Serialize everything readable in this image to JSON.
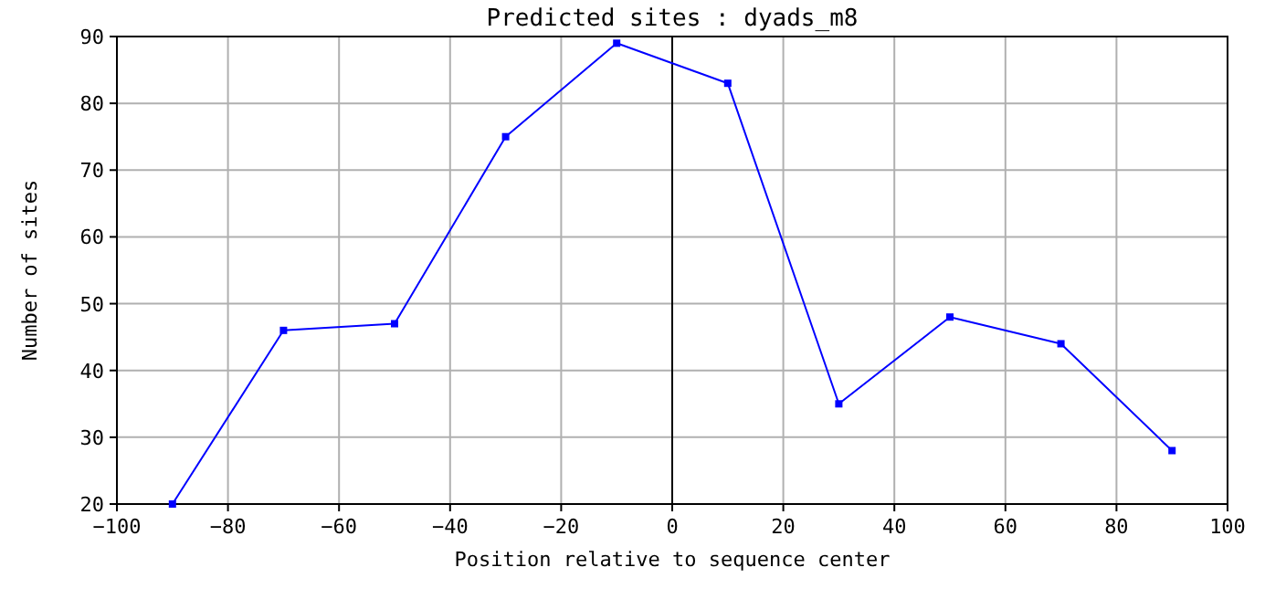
{
  "chart_data": {
    "type": "line",
    "title": "Predicted sites : dyads_m8",
    "xlabel": "Position relative to sequence center",
    "ylabel": "Number of sites",
    "x": [
      -90,
      -70,
      -50,
      -30,
      -10,
      10,
      30,
      50,
      70,
      90
    ],
    "series": [
      {
        "color": "#0000ff",
        "values": [
          20,
          46,
          47,
          75,
          89,
          83,
          35,
          48,
          44,
          28
        ]
      }
    ],
    "xlim": [
      -100,
      100
    ],
    "xticks": [
      -100,
      -80,
      -60,
      -40,
      -20,
      0,
      20,
      40,
      60,
      80,
      100
    ],
    "ylim": [
      20,
      90
    ],
    "yticks": [
      20,
      30,
      40,
      50,
      60,
      70,
      80,
      90
    ],
    "ref_lines": [
      {
        "axis": "x",
        "value": 0,
        "color": "#000000"
      }
    ],
    "grid": true,
    "marker": "square",
    "line_style": "solid"
  }
}
